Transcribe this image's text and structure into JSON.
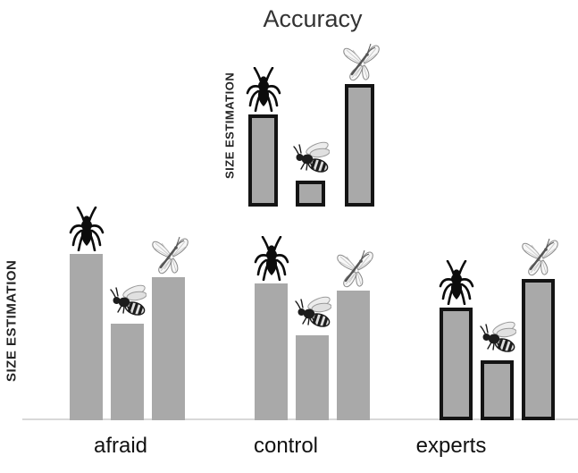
{
  "title": "Accuracy",
  "colors": {
    "background": "#ffffff",
    "bar_fill": "#a9a9a9",
    "bar_border": "#141414",
    "baseline": "#d8d8d8",
    "title_text": "#333333",
    "axis_label_text": "#242424",
    "group_label_text": "#111111"
  },
  "icons": {
    "spider": "spider-icon",
    "wasp": "wasp-icon",
    "butterfly": "butterfly-icon"
  },
  "chart_data": {
    "type": "bar",
    "title": "Accuracy",
    "ylabel": "SIZE ESTIMATION",
    "xlabel": "",
    "categories": [
      "spider",
      "wasp",
      "butterfly"
    ],
    "value_scale": "relative size estimation, normalized 0-1 (no numeric axis ticks shown)",
    "grid": false,
    "legend": "none (categories indicated by spider / wasp / butterfly icons above each bar)",
    "inset": {
      "name": "accuracy-reference",
      "ylabel": "SIZE ESTIMATION",
      "values": [
        0.75,
        0.21,
        1.0
      ],
      "outlined": true
    },
    "groups": [
      {
        "label": "afraid",
        "values": [
          1.0,
          0.58,
          0.86
        ],
        "outlined": false
      },
      {
        "label": "control",
        "values": [
          0.82,
          0.51,
          0.78
        ],
        "outlined": false
      },
      {
        "label": "experts",
        "values": [
          0.68,
          0.36,
          0.85
        ],
        "outlined": true
      }
    ]
  }
}
